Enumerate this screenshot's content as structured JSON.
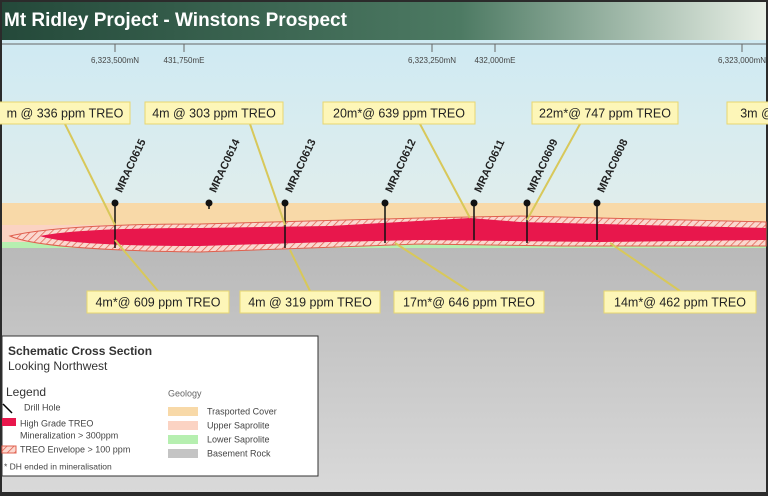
{
  "header": {
    "title": "Mt Ridley Project - Winstons Prospect"
  },
  "coordinates": [
    "6,323,500mN",
    "431,750mE",
    "6,323,250mN",
    "432,000mE",
    "6,323,000mN"
  ],
  "drill_holes": [
    "MRAC0615",
    "MRAC0614",
    "MRAC0613",
    "MRAC0612",
    "MRAC0611",
    "MRAC0609",
    "MRAC0608"
  ],
  "callouts_top": [
    "m @ 336 ppm TREO",
    "4m @ 303 ppm TREO",
    "20m*@ 639 ppm TREO",
    "22m*@ 747 ppm TREO",
    "3m @"
  ],
  "callouts_bottom": [
    "4m*@ 609 ppm TREO",
    "4m @ 319 ppm TREO",
    "17m*@ 646 ppm TREO",
    "14m*@ 462 ppm TREO"
  ],
  "legend": {
    "title": "Schematic Cross Section",
    "subtitle": "Looking Northwest",
    "heading": "Legend",
    "items": [
      "Drill Hole",
      "High Grade TREO",
      "Mineralization > 300ppm",
      "TREO Envelope > 100 ppm",
      "* DH ended in mineralisation"
    ],
    "geology_heading": "Geology",
    "geology": [
      "Trasported Cover",
      "Upper Saprolite",
      "Lower Saprolite",
      "Basement Rock"
    ]
  }
}
